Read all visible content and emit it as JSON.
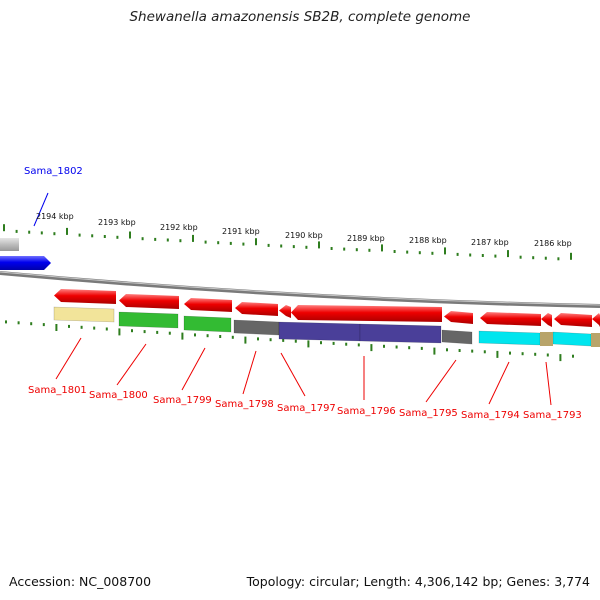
{
  "title": "Shewanella amazonensis SB2B, complete genome",
  "footer": {
    "accession": "Accession: NC_008700",
    "stats": "Topology: circular; Length: 4,306,142 bp; Genes: 3,774"
  },
  "scale_labels": [
    "2194 kbp",
    "2193 kbp",
    "2192 kbp",
    "2191 kbp",
    "2190 kbp",
    "2189 kbp",
    "2188 kbp",
    "2187 kbp",
    "2186 kbp"
  ],
  "genes": [
    {
      "name": "Sama_1802",
      "strand": "+",
      "color": "#0000ee"
    },
    {
      "name": "Sama_1801",
      "strand": "-",
      "color": "#ee0000",
      "cog_color": "#f2e49a"
    },
    {
      "name": "Sama_1800",
      "strand": "-",
      "color": "#ee0000",
      "cog_color": "#33bb33"
    },
    {
      "name": "Sama_1799",
      "strand": "-",
      "color": "#ee0000",
      "cog_color": "#33bb33"
    },
    {
      "name": "Sama_1798",
      "strand": "-",
      "color": "#ee0000",
      "cog_color": "#666666"
    },
    {
      "name": "Sama_1797",
      "strand": "-",
      "color": "#ee0000",
      "cog_color": "#4a3f99"
    },
    {
      "name": "Sama_1796",
      "strand": "-",
      "color": "#ee0000",
      "cog_color": "#4a3f99"
    },
    {
      "name": "Sama_1795",
      "strand": "-",
      "color": "#ee0000",
      "cog_color": "#666666"
    },
    {
      "name": "Sama_1794",
      "strand": "-",
      "color": "#ee0000",
      "cog_color": "#00e5ee"
    },
    {
      "name": "Sama_1793",
      "strand": "-",
      "color": "#ee0000",
      "cog_color": "#00e5ee"
    }
  ],
  "colors": {
    "forward_strand": "#0000ee",
    "reverse_strand": "#ee0000",
    "backbone": "#888888",
    "tick": "#2e7d1e"
  }
}
